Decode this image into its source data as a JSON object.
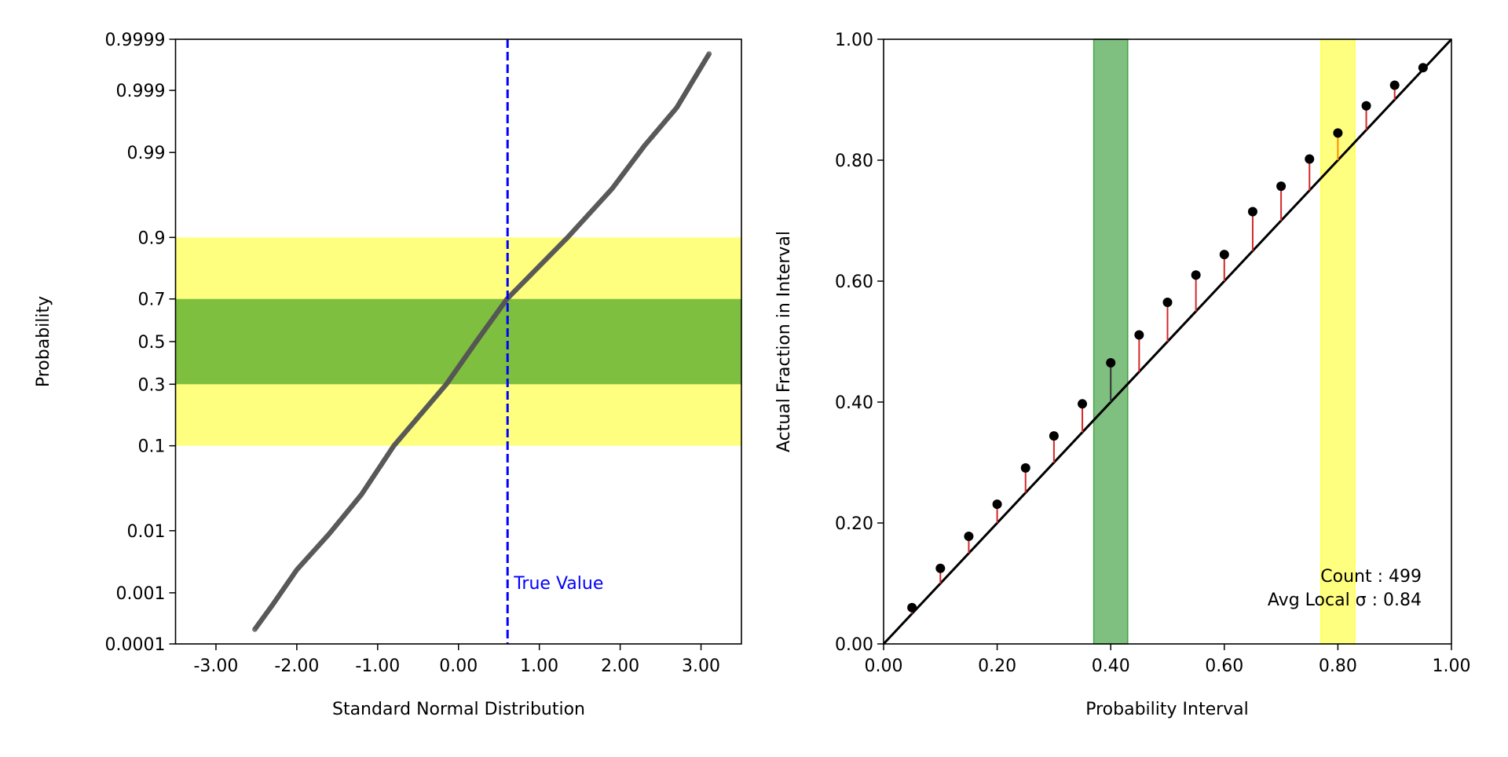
{
  "chart_data": [
    {
      "type": "scatter",
      "xlabel": "Standard Normal Distribution",
      "ylabel": "Probability",
      "xlim": [
        -3.5,
        3.5
      ],
      "ylim": [
        0.0001,
        0.9999
      ],
      "yscale": "probit",
      "xticks": [
        "-3.00",
        "-2.00",
        "-1.00",
        "0.00",
        "1.00",
        "2.00",
        "3.00"
      ],
      "xtick_values": [
        -3,
        -2,
        -1,
        0,
        1,
        2,
        3
      ],
      "yticks": [
        "0.0001",
        "0.001",
        "0.01",
        "0.1",
        "0.3",
        "0.5",
        "0.7",
        "0.9",
        "0.99",
        "0.999",
        "0.9999"
      ],
      "ytick_values": [
        0.0001,
        0.001,
        0.01,
        0.1,
        0.3,
        0.5,
        0.7,
        0.9,
        0.99,
        0.999,
        0.9999
      ],
      "point_count": 499,
      "curve_points": [
        {
          "x": -2.52,
          "p": 0.0002
        },
        {
          "x": -2.3,
          "p": 0.0006
        },
        {
          "x": -2.0,
          "p": 0.0025
        },
        {
          "x": -1.6,
          "p": 0.009
        },
        {
          "x": -1.2,
          "p": 0.03
        },
        {
          "x": -0.8,
          "p": 0.1
        },
        {
          "x": -0.15,
          "p": 0.3
        },
        {
          "x": 0.22,
          "p": 0.5
        },
        {
          "x": 0.6,
          "p": 0.7
        },
        {
          "x": 1.35,
          "p": 0.9
        },
        {
          "x": 1.9,
          "p": 0.97
        },
        {
          "x": 2.3,
          "p": 0.992
        },
        {
          "x": 2.7,
          "p": 0.998
        },
        {
          "x": 3.1,
          "p": 0.9998
        }
      ],
      "point_color": "#555555",
      "bands": [
        {
          "from": 0.1,
          "to": 0.9,
          "color": "#ffff00"
        },
        {
          "from": 0.3,
          "to": 0.7,
          "color": "#008000"
        }
      ],
      "true_value": {
        "x": 0.607,
        "label": "True Value",
        "color": "#0000ff"
      }
    },
    {
      "type": "scatter",
      "xlabel": "Probability Interval",
      "ylabel": "Actual Fraction in Interval",
      "xlim": [
        0,
        1
      ],
      "ylim": [
        0,
        1
      ],
      "xticks": [
        "0.00",
        "0.20",
        "0.40",
        "0.60",
        "0.80",
        "1.00"
      ],
      "yticks": [
        "0.00",
        "0.20",
        "0.40",
        "0.60",
        "0.80",
        "1.00"
      ],
      "tick_values": [
        0,
        0.2,
        0.4,
        0.6,
        0.8,
        1.0
      ],
      "x": [
        0.05,
        0.1,
        0.15,
        0.2,
        0.25,
        0.3,
        0.35,
        0.4,
        0.45,
        0.5,
        0.55,
        0.6,
        0.65,
        0.7,
        0.75,
        0.8,
        0.85,
        0.9,
        0.95
      ],
      "y": [
        0.06,
        0.125,
        0.178,
        0.231,
        0.291,
        0.344,
        0.397,
        0.465,
        0.511,
        0.565,
        0.61,
        0.644,
        0.715,
        0.757,
        0.802,
        0.845,
        0.89,
        0.924,
        0.953
      ],
      "stem_colors": [
        "#d62728",
        "#d62728",
        "#d62728",
        "#d62728",
        "#d62728",
        "#d62728",
        "#d62728",
        "#333333",
        "#d62728",
        "#d62728",
        "#d62728",
        "#d62728",
        "#d62728",
        "#d62728",
        "#d62728",
        "#ff8c00",
        "#d62728",
        "#d62728",
        "#d62728"
      ],
      "diagonal": true,
      "bands": [
        {
          "from": 0.37,
          "to": 0.43,
          "color": "#008000"
        },
        {
          "from": 0.77,
          "to": 0.83,
          "color": "#ffff00"
        }
      ],
      "annotation": {
        "count": "Count : 499",
        "sigma": "Avg Local σ : 0.84"
      }
    }
  ]
}
